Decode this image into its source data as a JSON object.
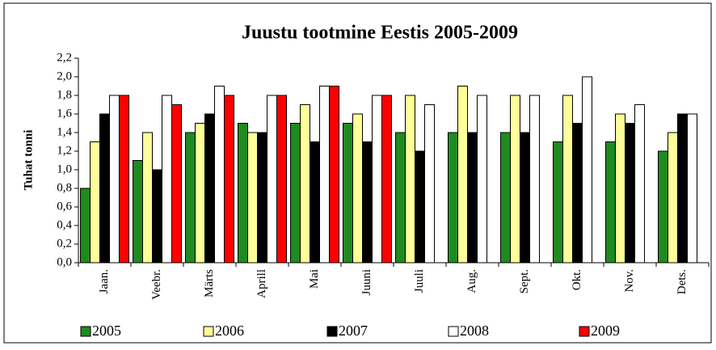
{
  "chart_data": {
    "type": "bar",
    "title": "Juustu tootmine Eestis 2005-2009",
    "y_label": "Tuhat tonni",
    "categories": [
      "Jaan.",
      "Veebr.",
      "Märts",
      "Aprill",
      "Mai",
      "Juuni",
      "Juuli",
      "Aug.",
      "Sept.",
      "Okt.",
      "Nov.",
      "Dets."
    ],
    "series": [
      {
        "name": "2005",
        "color": "#1f8a1f",
        "values": [
          0.8,
          1.1,
          1.4,
          1.5,
          1.5,
          1.5,
          1.4,
          1.4,
          1.4,
          1.3,
          1.3,
          1.2
        ]
      },
      {
        "name": "2006",
        "color": "#ffff99",
        "values": [
          1.3,
          1.4,
          1.5,
          1.4,
          1.7,
          1.6,
          1.8,
          1.9,
          1.8,
          1.8,
          1.6,
          1.4
        ]
      },
      {
        "name": "2007",
        "color": "#000000",
        "values": [
          1.6,
          1.0,
          1.6,
          1.4,
          1.3,
          1.3,
          1.2,
          1.4,
          1.4,
          1.5,
          1.5,
          1.6
        ]
      },
      {
        "name": "2008",
        "color": "#ffffff",
        "values": [
          1.8,
          1.8,
          1.9,
          1.8,
          1.9,
          1.8,
          1.7,
          1.8,
          1.8,
          2.0,
          1.7,
          1.6
        ]
      },
      {
        "name": "2009",
        "color": "#ff0000",
        "values": [
          1.8,
          1.7,
          1.8,
          1.8,
          1.9,
          1.8,
          null,
          null,
          null,
          null,
          null,
          null
        ]
      }
    ],
    "ylim": [
      0,
      2.2
    ],
    "yticks": [
      {
        "value": 0,
        "label": "0,0"
      },
      {
        "value": 0.2,
        "label": "0,2"
      },
      {
        "value": 0.4,
        "label": "0,4"
      },
      {
        "value": 0.6,
        "label": "0,6"
      },
      {
        "value": 0.8,
        "label": "0,8"
      },
      {
        "value": 1.0,
        "label": "1,0"
      },
      {
        "value": 1.2,
        "label": "1,2"
      },
      {
        "value": 1.4,
        "label": "1,4"
      },
      {
        "value": 1.6,
        "label": "1,6"
      },
      {
        "value": 1.8,
        "label": "1,8"
      },
      {
        "value": 2.0,
        "label": "2,0"
      },
      {
        "value": 2.2,
        "label": "2,2"
      }
    ],
    "grid": false,
    "legend": "bottom"
  }
}
